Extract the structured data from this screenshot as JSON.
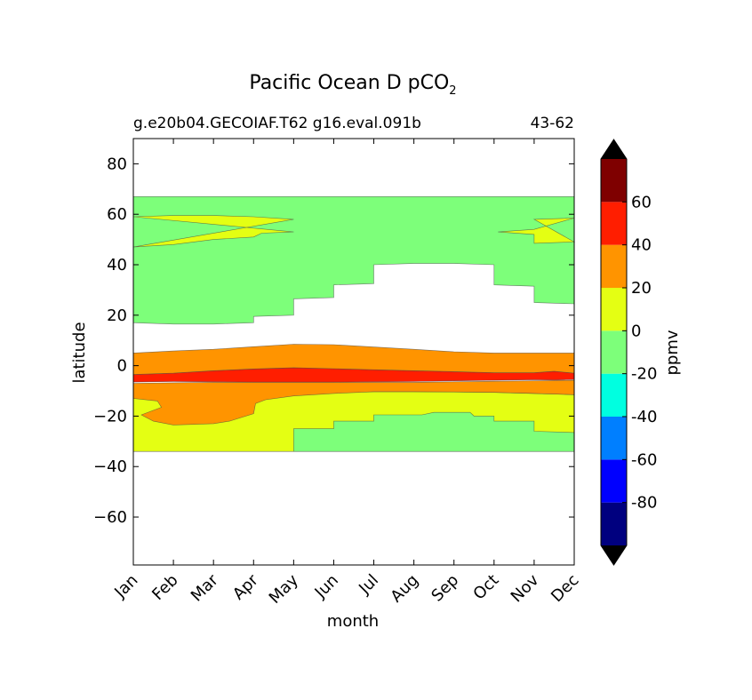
{
  "chart_data": {
    "type": "contourf",
    "title": {
      "main": "Pacific Ocean D pCO",
      "subscript": "2"
    },
    "subtitle_left": "g.e20b04.GECOIAF.T62 g16.eval.091b",
    "subtitle_right": "43-62",
    "xlabel": "month",
    "ylabel": "latitude",
    "x_ticks": [
      "Jan",
      "Feb",
      "Mar",
      "Apr",
      "May",
      "Jun",
      "Jul",
      "Aug",
      "Sep",
      "Oct",
      "Nov",
      "Dec"
    ],
    "y_ticks": [
      {
        "v": 80,
        "label": "80"
      },
      {
        "v": 60,
        "label": "60"
      },
      {
        "v": 40,
        "label": "40"
      },
      {
        "v": 20,
        "label": "20"
      },
      {
        "v": 0,
        "label": "0"
      },
      {
        "v": -20,
        "label": "−20"
      },
      {
        "v": -40,
        "label": "−40"
      },
      {
        "v": -60,
        "label": "−60"
      }
    ],
    "xlim": [
      1,
      12
    ],
    "ylim": [
      -79,
      90
    ],
    "data_lat_range": [
      -34,
      67
    ],
    "colorbar": {
      "label": "ppmv",
      "levels": [
        -100,
        -80,
        -60,
        -40,
        -20,
        0,
        20,
        40,
        60,
        80
      ],
      "tick_labels": [
        {
          "v": 60,
          "label": "60"
        },
        {
          "v": 40,
          "label": "40"
        },
        {
          "v": 20,
          "label": "20"
        },
        {
          "v": 0,
          "label": "0"
        },
        {
          "v": -20,
          "label": "-20"
        },
        {
          "v": -40,
          "label": "-40"
        },
        {
          "v": -60,
          "label": "-60"
        },
        {
          "v": -80,
          "label": "-80"
        }
      ],
      "colors": [
        "#00007f",
        "#0000ff",
        "#007fff",
        "#00ffe0",
        "#7dff7a",
        "#e4ff13",
        "#ff9400",
        "#ff1e00",
        "#7f0000"
      ],
      "under_color": "#000000",
      "over_color": "#000000"
    },
    "bands": [
      {
        "name": "green-low",
        "color": "#7dff7a",
        "top": [
          [
            1,
            -34
          ],
          [
            12,
            -34
          ]
        ],
        "bottom": [
          [
            1,
            -34
          ],
          [
            12,
            -34
          ]
        ]
      },
      {
        "name": "yellow-south",
        "color": "#e4ff13",
        "top": [
          [
            1,
            -12
          ],
          [
            2,
            -11.5
          ],
          [
            3,
            -11
          ],
          [
            4,
            -10.8
          ],
          [
            5,
            -10.6
          ],
          [
            6,
            -10.4
          ],
          [
            7,
            -10.3
          ],
          [
            8,
            -10.3
          ],
          [
            9,
            -10.4
          ],
          [
            10,
            -10.6
          ],
          [
            11,
            -11
          ],
          [
            12,
            -11.5
          ]
        ],
        "bottom": [
          [
            1,
            -34
          ],
          [
            5,
            -34
          ],
          [
            5,
            -34
          ],
          [
            12,
            -34
          ]
        ]
      },
      {
        "name": "green-south",
        "color": "#7dff7a",
        "top": [
          [
            5,
            -25
          ],
          [
            6,
            -25
          ],
          [
            6,
            -22
          ],
          [
            7,
            -22
          ],
          [
            7,
            -19.5
          ],
          [
            8.2,
            -19.5
          ],
          [
            8.5,
            -18.5
          ],
          [
            9.4,
            -18.5
          ],
          [
            9.5,
            -20
          ],
          [
            10,
            -20
          ],
          [
            10,
            -22
          ],
          [
            11,
            -22
          ],
          [
            11,
            -26
          ],
          [
            12,
            -26.5
          ]
        ],
        "bottom": [
          [
            5,
            -34
          ],
          [
            12,
            -34
          ]
        ]
      },
      {
        "name": "orange-south",
        "color": "#ff9400",
        "top": [
          [
            1,
            -7
          ],
          [
            2,
            -6.8
          ],
          [
            3,
            -6.6
          ],
          [
            4,
            -6.6
          ],
          [
            5,
            -6.6
          ],
          [
            6,
            -6.6
          ],
          [
            7,
            -6.6
          ],
          [
            8,
            -6.6
          ],
          [
            9,
            -6.4
          ],
          [
            10,
            -6.2
          ],
          [
            11,
            -6
          ],
          [
            12,
            -5.8
          ]
        ],
        "bottom": [
          [
            1,
            -13
          ],
          [
            1.6,
            -14
          ],
          [
            1.7,
            -16.5
          ],
          [
            1.2,
            -19.5
          ],
          [
            1.5,
            -22
          ],
          [
            2,
            -23.5
          ],
          [
            3,
            -23
          ],
          [
            3.4,
            -22
          ],
          [
            4,
            -19
          ],
          [
            4.05,
            -15
          ],
          [
            4.3,
            -13.5
          ],
          [
            5,
            -12
          ],
          [
            6,
            -11
          ],
          [
            7,
            -10.3
          ],
          [
            8,
            -10.3
          ],
          [
            9,
            -10.4
          ],
          [
            10,
            -10.6
          ],
          [
            11,
            -11
          ],
          [
            12,
            -11.5
          ]
        ]
      },
      {
        "name": "red-equator",
        "color": "#ff1e00",
        "top": [
          [
            1,
            -3.5
          ],
          [
            2,
            -3
          ],
          [
            3,
            -2
          ],
          [
            4,
            -1.3
          ],
          [
            5,
            -0.8
          ],
          [
            6,
            -1.2
          ],
          [
            7,
            -1.6
          ],
          [
            8,
            -2
          ],
          [
            9,
            -2.4
          ],
          [
            10,
            -2.8
          ],
          [
            11,
            -2.8
          ],
          [
            11.5,
            -2.2
          ],
          [
            12,
            -3
          ]
        ],
        "bottom": [
          [
            1,
            -6.5
          ],
          [
            2,
            -6.3
          ],
          [
            3,
            -6.4
          ],
          [
            4,
            -6.5
          ],
          [
            5,
            -6.5
          ],
          [
            6,
            -6.5
          ],
          [
            7,
            -6.4
          ],
          [
            8,
            -6.3
          ],
          [
            9,
            -6
          ],
          [
            10,
            -5.8
          ],
          [
            11,
            -5.6
          ],
          [
            11.5,
            -5.7
          ],
          [
            12,
            -5.5
          ]
        ]
      },
      {
        "name": "orange-north",
        "color": "#ff9400",
        "top": [
          [
            1,
            5
          ],
          [
            2,
            5.8
          ],
          [
            3,
            6.5
          ],
          [
            4,
            7.5
          ],
          [
            5,
            8.5
          ],
          [
            6,
            8.3
          ],
          [
            7,
            7.4
          ],
          [
            8,
            6.5
          ],
          [
            9,
            5.5
          ],
          [
            10,
            5
          ],
          [
            11,
            5
          ],
          [
            12,
            5
          ]
        ],
        "bottom": [
          [
            1,
            -3.5
          ],
          [
            2,
            -3
          ],
          [
            3,
            -2
          ],
          [
            4,
            -1.3
          ],
          [
            5,
            -0.8
          ],
          [
            6,
            -1.2
          ],
          [
            7,
            -1.6
          ],
          [
            8,
            -2
          ],
          [
            9,
            -2.4
          ],
          [
            10,
            -2.8
          ],
          [
            11,
            -2.8
          ],
          [
            11.5,
            -2.2
          ],
          [
            12,
            -3
          ]
        ]
      },
      {
        "name": "green-north",
        "color": "#7dff7a",
        "top": [
          [
            1,
            67
          ],
          [
            12,
            67
          ]
        ],
        "bottom": [
          [
            1,
            17
          ],
          [
            2,
            16.5
          ],
          [
            3,
            16.5
          ],
          [
            4,
            17
          ],
          [
            4,
            19.5
          ],
          [
            5,
            20
          ],
          [
            5,
            26.5
          ],
          [
            6,
            27
          ],
          [
            6,
            32
          ],
          [
            7,
            32.5
          ],
          [
            7,
            40
          ],
          [
            8,
            40.5
          ],
          [
            9,
            40.5
          ],
          [
            10,
            40
          ],
          [
            10,
            32
          ],
          [
            11,
            31.5
          ],
          [
            11,
            25
          ],
          [
            12,
            24.5
          ]
        ]
      },
      {
        "name": "yellow-north-a",
        "color": "#e4ff13",
        "top": [
          [
            1,
            59
          ],
          [
            2,
            59.5
          ],
          [
            3,
            59.5
          ],
          [
            4,
            59
          ],
          [
            5,
            58
          ],
          [
            5,
            58
          ]
        ],
        "bottom": [
          [
            5,
            53
          ],
          [
            4.2,
            52.5
          ],
          [
            4,
            51
          ],
          [
            3,
            50
          ],
          [
            2,
            48
          ],
          [
            1,
            47
          ]
        ]
      },
      {
        "name": "yellow-north-b",
        "color": "#e4ff13",
        "top": [
          [
            11,
            58
          ],
          [
            12,
            58.5
          ]
        ],
        "bottom": [
          [
            12,
            49
          ],
          [
            11,
            48.5
          ],
          [
            11,
            52
          ],
          [
            10.1,
            53
          ],
          [
            11,
            54
          ]
        ]
      }
    ]
  }
}
